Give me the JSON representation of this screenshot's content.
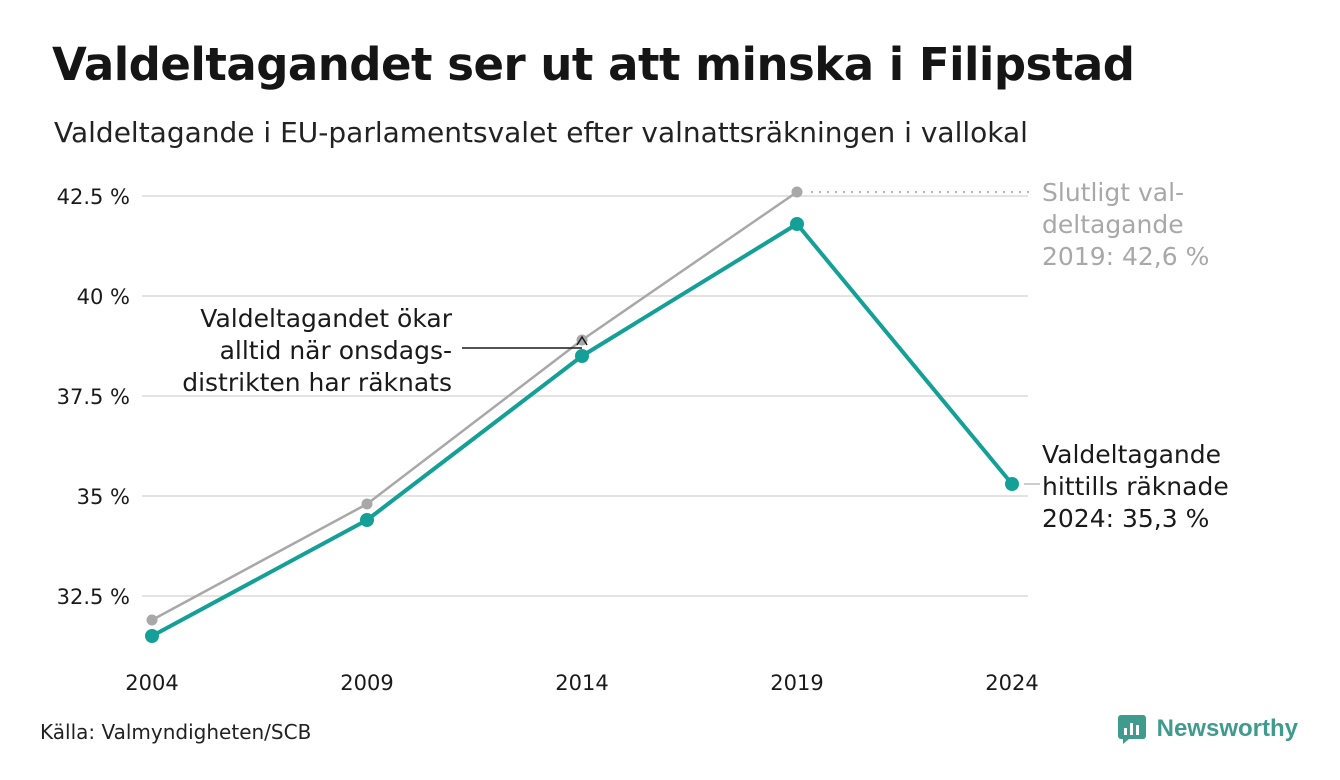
{
  "header": {
    "title": "Valdeltagandet ser ut att minska i Filipstad",
    "subtitle": "Valdeltagande i EU-parlamentsvalet efter valnattsräkningen i vallokal"
  },
  "footer": {
    "source": "Källa: Valmyndigheten/SCB",
    "brand": "Newsworthy"
  },
  "colors": {
    "teal": "#14a096",
    "grey": "#a8a8a8",
    "grid": "#e3e3e3",
    "brand": "#3f9b8d"
  },
  "chart_data": {
    "type": "line",
    "x": [
      "2004",
      "2009",
      "2014",
      "2019",
      "2024"
    ],
    "ylim": [
      31.5,
      42.5
    ],
    "yticks": [
      32.5,
      35,
      37.5,
      40,
      42.5
    ],
    "ytick_labels": [
      "32.5 %",
      "35 %",
      "37.5 %",
      "40 %",
      "42.5 %"
    ],
    "grid": true,
    "series": [
      {
        "key": "slutligt",
        "values": [
          31.9,
          34.8,
          38.9,
          42.6,
          null
        ],
        "color": "#a8a8a8"
      },
      {
        "key": "valnatt",
        "values": [
          31.5,
          34.4,
          38.5,
          41.8,
          35.3
        ],
        "color": "#14a096"
      }
    ],
    "annotations": [
      {
        "key": "final2019",
        "lines": [
          "Slutligt val-",
          "deltagande",
          "2019: 42,6 %"
        ],
        "color": "#a8a8a8"
      },
      {
        "key": "counted2024",
        "lines": [
          "Valdeltagande",
          "hittills räknade",
          "2024: 35,3 %"
        ],
        "color": "#1a1a1a"
      },
      {
        "key": "wednesday",
        "lines": [
          "Valdeltagandet ökar",
          "alltid när onsdags-",
          "distrikten har räknats"
        ],
        "color": "#1a1a1a"
      }
    ]
  }
}
